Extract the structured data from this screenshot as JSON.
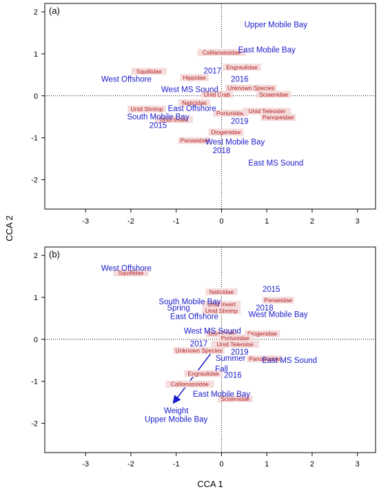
{
  "figure": {
    "xlabel": "CCA 1",
    "ylabel": "CCA 2",
    "x_ticks": [
      -3,
      -2,
      -1,
      0,
      1,
      2,
      3
    ],
    "y_ticks": [
      -2,
      -1,
      0,
      1,
      2
    ]
  },
  "colors": {
    "site": "#1a1acc",
    "species": "#b42020",
    "species_bg": "#f5dcdc",
    "arrow": "#1a1acc",
    "axis": "#000000"
  },
  "chart_data": [
    {
      "type": "scatter",
      "panel_label": "(a)",
      "xlim": [
        -3.9,
        3.4
      ],
      "ylim": [
        -2.7,
        2.2
      ],
      "reference_lines": {
        "x": 0,
        "y": 0,
        "style": "dotted"
      },
      "grid": false,
      "sites": [
        {
          "label": "Upper Mobile Bay",
          "x": 1.2,
          "y": 1.7
        },
        {
          "label": "East Mobile Bay",
          "x": 1.0,
          "y": 1.1
        },
        {
          "label": "2017",
          "x": -0.2,
          "y": 0.6
        },
        {
          "label": "2016",
          "x": 0.4,
          "y": 0.4
        },
        {
          "label": "West Offshore",
          "x": -2.1,
          "y": 0.4
        },
        {
          "label": "West MS Sound",
          "x": -0.7,
          "y": 0.15
        },
        {
          "label": "East Offshore",
          "x": -0.65,
          "y": -0.3
        },
        {
          "label": "South Mobile Bay",
          "x": -1.4,
          "y": -0.5
        },
        {
          "label": "2019",
          "x": 0.4,
          "y": -0.6
        },
        {
          "label": "2015",
          "x": -1.4,
          "y": -0.7
        },
        {
          "label": "West Mobile Bay",
          "x": 0.3,
          "y": -1.1
        },
        {
          "label": "2018",
          "x": 0.0,
          "y": -1.3
        },
        {
          "label": "East MS Sound",
          "x": 1.2,
          "y": -1.6
        }
      ],
      "species": [
        {
          "label": "Callianassidae",
          "x": 0.0,
          "y": 1.0
        },
        {
          "label": "Engraulidae",
          "x": 0.45,
          "y": 0.65
        },
        {
          "label": "Squillidae",
          "x": -1.6,
          "y": 0.55
        },
        {
          "label": "Hippidae",
          "x": -0.6,
          "y": 0.4
        },
        {
          "label": "Unknown Species",
          "x": 0.65,
          "y": 0.15
        },
        {
          "label": "Unid Crab",
          "x": -0.1,
          "y": 0.0
        },
        {
          "label": "Sciaenidae",
          "x": 1.15,
          "y": 0.0
        },
        {
          "label": "Naticidae",
          "x": -0.6,
          "y": -0.2
        },
        {
          "label": "Unid Shrimp",
          "x": -1.65,
          "y": -0.35
        },
        {
          "label": "Portunidae",
          "x": 0.2,
          "y": -0.45
        },
        {
          "label": "Unid Teleostei",
          "x": 1.0,
          "y": -0.4
        },
        {
          "label": "Panopeidae",
          "x": 1.25,
          "y": -0.55
        },
        {
          "label": "Unid Invert",
          "x": -1.05,
          "y": -0.6
        },
        {
          "label": "Diogenidae",
          "x": 0.1,
          "y": -0.9
        },
        {
          "label": "Penaeidae",
          "x": -0.6,
          "y": -1.1
        }
      ]
    },
    {
      "type": "scatter",
      "panel_label": "(b)",
      "xlim": [
        -3.9,
        3.4
      ],
      "ylim": [
        -2.7,
        2.2
      ],
      "reference_lines": {
        "x": 0,
        "y": 0,
        "style": "dotted"
      },
      "grid": false,
      "sites": [
        {
          "label": "West Offshore",
          "x": -2.1,
          "y": 1.7
        },
        {
          "label": "2015",
          "x": 1.1,
          "y": 1.2
        },
        {
          "label": "South Mobile Bay",
          "x": -0.7,
          "y": 0.9
        },
        {
          "label": "Spring",
          "x": -0.95,
          "y": 0.75
        },
        {
          "label": "2018",
          "x": 0.95,
          "y": 0.75
        },
        {
          "label": "East Offshore",
          "x": -0.6,
          "y": 0.55
        },
        {
          "label": "West Mobile Bay",
          "x": 1.25,
          "y": 0.6
        },
        {
          "label": "West MS Sound",
          "x": -0.2,
          "y": 0.2
        },
        {
          "label": "2017",
          "x": -0.5,
          "y": -0.1
        },
        {
          "label": "2019",
          "x": 0.4,
          "y": -0.3
        },
        {
          "label": "Summer",
          "x": 0.2,
          "y": -0.45
        },
        {
          "label": "East MS Sound",
          "x": 1.5,
          "y": -0.5
        },
        {
          "label": "Fall",
          "x": 0.0,
          "y": -0.7
        },
        {
          "label": "2016",
          "x": 0.25,
          "y": -0.85
        },
        {
          "label": "East Mobile Bay",
          "x": 0.0,
          "y": -1.3
        },
        {
          "label": "Weight",
          "x": -1.0,
          "y": -1.7
        },
        {
          "label": "Upper Mobile Bay",
          "x": -1.0,
          "y": -1.9
        }
      ],
      "species": [
        {
          "label": "Squillidae",
          "x": -2.0,
          "y": 1.55
        },
        {
          "label": "Naticidae",
          "x": 0.0,
          "y": 1.1
        },
        {
          "label": "Penaeidae",
          "x": 1.25,
          "y": 0.9
        },
        {
          "label": "Unid Invert",
          "x": 0.0,
          "y": 0.8
        },
        {
          "label": "Unid Shrimp",
          "x": 0.0,
          "y": 0.65
        },
        {
          "label": "Unid Crab",
          "x": 0.0,
          "y": 0.1
        },
        {
          "label": "Diogenidae",
          "x": 0.9,
          "y": 0.1
        },
        {
          "label": "Portunidae",
          "x": 0.3,
          "y": 0.0
        },
        {
          "label": "Unid Teleostei",
          "x": 0.3,
          "y": -0.15
        },
        {
          "label": "Unknown Species",
          "x": -0.5,
          "y": -0.3
        },
        {
          "label": "Panopeidae",
          "x": 0.95,
          "y": -0.5
        },
        {
          "label": "Engraulidae",
          "x": -0.4,
          "y": -0.85
        },
        {
          "label": "Callianassidae",
          "x": -0.7,
          "y": -1.1
        },
        {
          "label": "Sciaenidae",
          "x": 0.3,
          "y": -1.45
        }
      ],
      "arrows": [
        {
          "label": "Weight",
          "from": [
            0,
            0
          ],
          "to": [
            -1.05,
            -1.5
          ]
        }
      ]
    }
  ]
}
